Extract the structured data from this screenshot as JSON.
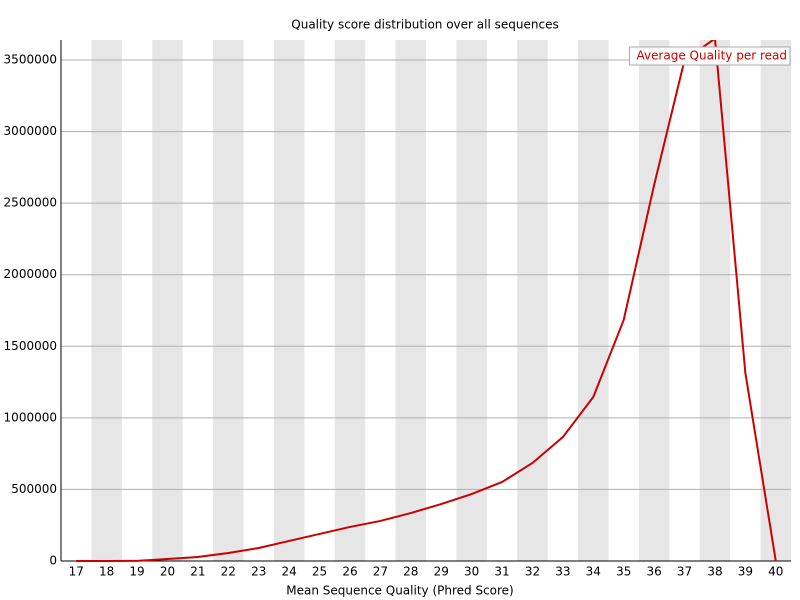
{
  "chart_data": {
    "type": "line",
    "title": "Quality score distribution over all sequences",
    "x_label": "Mean Sequence Quality (Phred Score)",
    "categories": [
      "17",
      "18",
      "19",
      "20",
      "21",
      "22",
      "23",
      "24",
      "25",
      "26",
      "27",
      "28",
      "29",
      "30",
      "31",
      "32",
      "33",
      "34",
      "35",
      "36",
      "37",
      "38",
      "39",
      "40"
    ],
    "series": [
      {
        "name": "Average Quality per read",
        "color": "#cc0000",
        "values": [
          0,
          0,
          1000,
          14000,
          28000,
          56000,
          91000,
          140000,
          189000,
          238000,
          280000,
          335000,
          398000,
          468000,
          552000,
          685000,
          866000,
          1146000,
          1684000,
          2627000,
          3500000,
          3650000,
          1313000,
          0
        ]
      }
    ],
    "ylim": [
      0,
      3640000
    ],
    "yticks": [
      0,
      500000,
      1000000,
      1500000,
      2000000,
      2500000,
      3000000,
      3500000
    ],
    "grid": true,
    "legend": "top-right"
  }
}
